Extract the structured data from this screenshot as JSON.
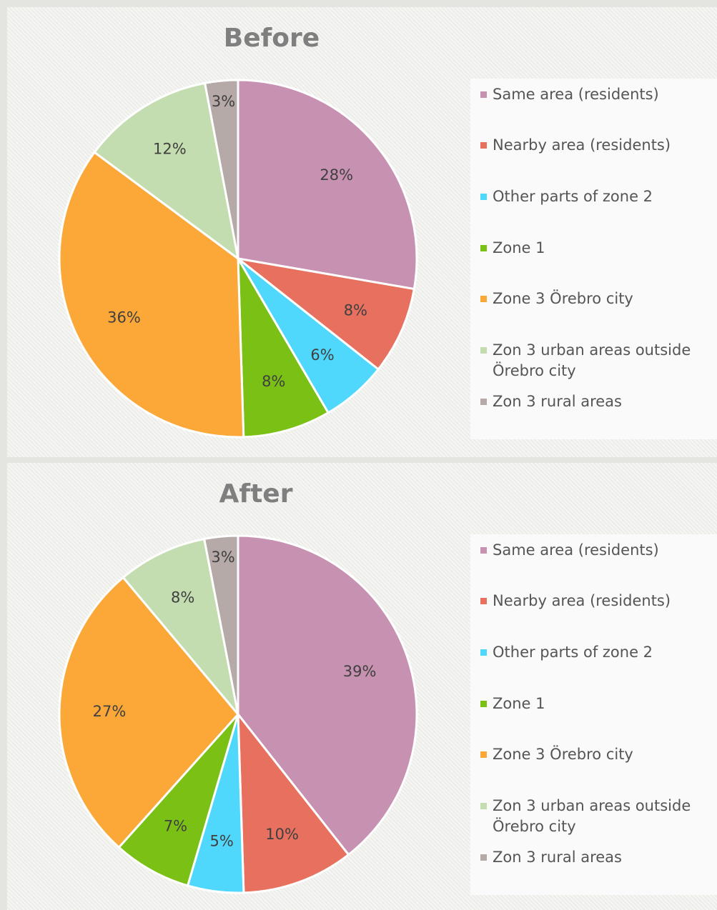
{
  "chart_data": [
    {
      "type": "pie",
      "title": "Before",
      "categories": [
        "Same area (residents)",
        "Nearby area (residents)",
        "Other parts of zone 2",
        "Zone 1",
        "Zone 3 Örebro city",
        "Zon 3 urban areas outside Örebro city",
        "Zon 3 rural areas"
      ],
      "values": [
        28,
        8,
        6,
        8,
        36,
        12,
        3
      ],
      "value_labels": [
        "28%",
        "8%",
        "6%",
        "8%",
        "36%",
        "12%",
        "3%"
      ],
      "colors": [
        "#c791b1",
        "#e8705e",
        "#50d8fc",
        "#7ac015",
        "#fca838",
        "#c3ddb0",
        "#b5aaa8"
      ]
    },
    {
      "type": "pie",
      "title": "After",
      "categories": [
        "Same area (residents)",
        "Nearby area (residents)",
        "Other parts of zone 2",
        "Zone 1",
        "Zone 3 Örebro city",
        "Zon 3 urban areas outside Örebro city",
        "Zon 3 rural areas"
      ],
      "values": [
        39,
        10,
        5,
        7,
        27,
        8,
        3
      ],
      "value_labels": [
        "39%",
        "10%",
        "5%",
        "7%",
        "27%",
        "8%",
        "3%"
      ],
      "colors": [
        "#c791b1",
        "#e8705e",
        "#50d8fc",
        "#7ac015",
        "#fca838",
        "#c3ddb0",
        "#b5aaa8"
      ]
    }
  ]
}
